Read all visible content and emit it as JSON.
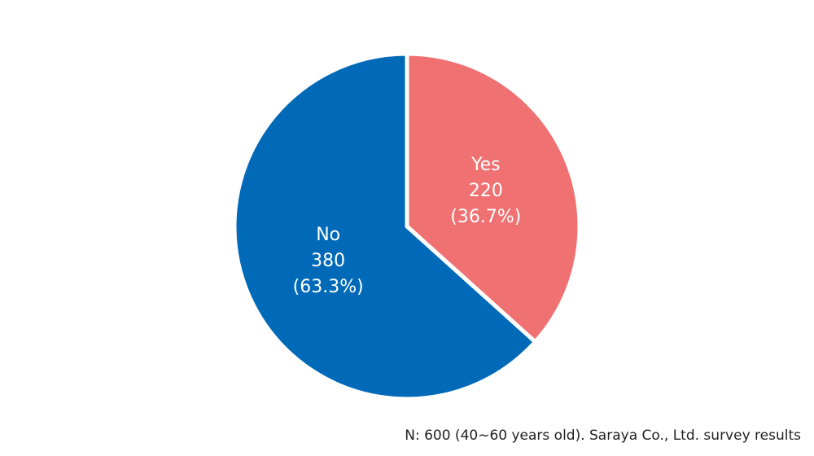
{
  "chart_data": {
    "type": "pie",
    "categories": [
      "Yes",
      "No"
    ],
    "values": [
      220,
      380
    ],
    "percent_labels": [
      "(36.7%)",
      "(63.3%)"
    ],
    "colors": [
      "#f07172",
      "#006ab8"
    ],
    "note": "N: 600 (40~60 years old). Saraya Co., Ltd. survey results"
  }
}
